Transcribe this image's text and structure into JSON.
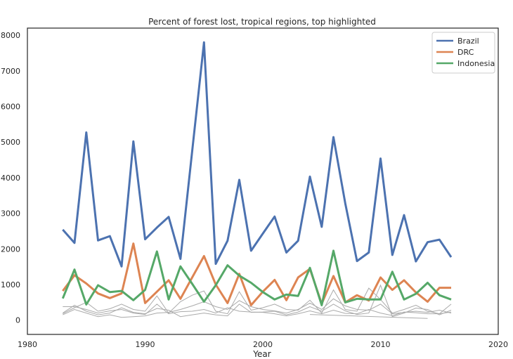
{
  "chart_data": {
    "type": "line",
    "title": "Percent of forest lost, tropical regions, top highlighted",
    "xlabel": "Year",
    "ylabel": "",
    "xlim": [
      1980,
      2020
    ],
    "ylim": [
      -400,
      8200
    ],
    "xticks": [
      1980,
      1990,
      2000,
      2010,
      2020
    ],
    "yticks": [
      0,
      1000,
      2000,
      3000,
      4000,
      5000,
      6000,
      7000,
      8000
    ],
    "grid": false,
    "legend": "top-right",
    "x": [
      1983,
      1984,
      1985,
      1986,
      1987,
      1988,
      1989,
      1990,
      1991,
      1992,
      1993,
      1994,
      1995,
      1996,
      1997,
      1998,
      1999,
      2000,
      2001,
      2002,
      2003,
      2004,
      2005,
      2006,
      2007,
      2008,
      2009,
      2010,
      2011,
      2012,
      2013,
      2014,
      2015,
      2016
    ],
    "series": [
      {
        "name": "Brazil",
        "color": "#4c72b0",
        "values": [
          2540,
          2170,
          5270,
          2240,
          2360,
          1510,
          5020,
          2270,
          2600,
          2900,
          1720,
          4750,
          7800,
          1580,
          2230,
          3940,
          1950,
          2430,
          2910,
          1900,
          2230,
          4030,
          2620,
          5140,
          3280,
          1660,
          1900,
          4540,
          1830,
          2950,
          1650,
          2190,
          2260,
          1770
        ]
      },
      {
        "name": "DRC",
        "color": "#dd8452",
        "values": [
          820,
          1260,
          1030,
          750,
          620,
          750,
          2150,
          480,
          800,
          1120,
          600,
          1200,
          1800,
          1000,
          480,
          1300,
          420,
          800,
          1130,
          560,
          1200,
          1440,
          460,
          1240,
          500,
          700,
          550,
          1200,
          850,
          1120,
          780,
          520,
          910,
          910
        ]
      },
      {
        "name": "Indonesia",
        "color": "#55a868",
        "values": [
          610,
          1420,
          440,
          980,
          790,
          820,
          560,
          850,
          1930,
          580,
          1510,
          1020,
          520,
          980,
          1540,
          1250,
          1050,
          790,
          580,
          720,
          680,
          1470,
          420,
          1950,
          500,
          600,
          580,
          580,
          1360,
          580,
          740,
          1050,
          700,
          580
        ]
      }
    ],
    "background_series": [
      {
        "color": "#aaaaaa",
        "x": [
          1983,
          1984,
          1985,
          1986,
          1987,
          1988,
          1989,
          1990,
          1991,
          1992,
          1993,
          1994,
          1995,
          1996,
          1997,
          1998,
          1999,
          2000,
          2001,
          2002,
          2003,
          2004,
          2005,
          2006,
          2007,
          2008,
          2009,
          2010,
          2011,
          2012,
          2013,
          2014,
          2015,
          2016
        ],
        "values": [
          380,
          380,
          300,
          200,
          260,
          300,
          200,
          160,
          450,
          180,
          240,
          250,
          300,
          200,
          350,
          250,
          230,
          220,
          180,
          120,
          180,
          260,
          180,
          280,
          190,
          180,
          300,
          200,
          130,
          230,
          210,
          180,
          180,
          230
        ]
      },
      {
        "color": "#aaaaaa",
        "x": [
          1983,
          1984,
          1985,
          1986,
          1987,
          1988,
          1989,
          1990,
          1991,
          1992,
          1993,
          1994,
          1995,
          1996,
          1997,
          1998,
          1999,
          2000,
          2001,
          2002,
          2003,
          2004,
          2005,
          2006,
          2007,
          2008,
          2009,
          2010,
          2011,
          2012,
          2013,
          2014,
          2015,
          2016
        ],
        "values": [
          180,
          350,
          500,
          250,
          320,
          450,
          300,
          250,
          680,
          200,
          520,
          700,
          820,
          250,
          180,
          800,
          280,
          350,
          450,
          300,
          280,
          560,
          200,
          850,
          300,
          250,
          900,
          580,
          200,
          300,
          420,
          250,
          180,
          450
        ]
      },
      {
        "color": "#aaaaaa",
        "x": [
          1983,
          1984,
          1985,
          1986,
          1987,
          1988,
          1989,
          1990,
          1991,
          1992,
          1993,
          1994,
          1995,
          1996,
          1997,
          1998,
          1999,
          2000,
          2001,
          2002,
          2003,
          2004,
          2005,
          2006,
          2007,
          2008,
          2009,
          2010,
          2011,
          2012,
          2013,
          2014,
          2015,
          2016
        ],
        "values": [
          200,
          420,
          250,
          150,
          200,
          350,
          220,
          180,
          330,
          280,
          100,
          150,
          200,
          150,
          120,
          450,
          220,
          230,
          250,
          150,
          230,
          380,
          250,
          450,
          260,
          160,
          200,
          980,
          100,
          200,
          340,
          300,
          150,
          280
        ]
      },
      {
        "color": "#aaaaaa",
        "x": [
          1983,
          1984,
          1985,
          1986,
          1987,
          1988,
          1989,
          1990,
          1991,
          1992,
          1993,
          1994,
          1995,
          1996,
          1997,
          1998,
          1999,
          2000,
          2001,
          2002,
          2003,
          2004,
          2005,
          2006,
          2007,
          2008,
          2009,
          2010,
          2011,
          2012,
          2013,
          2014,
          2015,
          2016
        ],
        "values": [
          150,
          300,
          200,
          100,
          150,
          80,
          100,
          120,
          200,
          220,
          300,
          400,
          520,
          380,
          300,
          550,
          380,
          300,
          260,
          200,
          300,
          480,
          300,
          600,
          400,
          300,
          280,
          450,
          180,
          220,
          250,
          220,
          280,
          200
        ]
      },
      {
        "color": "#aaaaaa",
        "x": [
          2004,
          2014
        ],
        "values": [
          160,
          50
        ]
      }
    ]
  }
}
